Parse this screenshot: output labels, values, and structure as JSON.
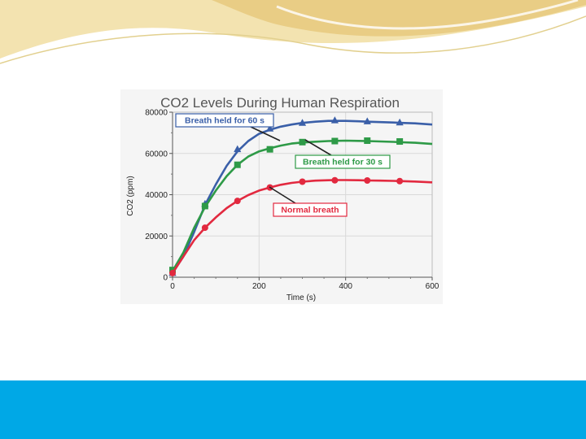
{
  "slide": {
    "accent_color": "#00a8e6",
    "header_wave_colors": [
      "#f3e3b0",
      "#e9cd85",
      "#e2d08f"
    ]
  },
  "chart_data": {
    "type": "line",
    "title": "CO2 Levels During Human Respiration",
    "xlabel": "Time (s)",
    "ylabel": "CO2 (ppm)",
    "xlim": [
      0,
      600
    ],
    "ylim": [
      0,
      80000
    ],
    "x_ticks": [
      0,
      200,
      400,
      600
    ],
    "y_ticks": [
      0,
      20000,
      40000,
      60000,
      80000
    ],
    "grid": true,
    "legend": "inline labels with leader lines",
    "series": [
      {
        "name": "Breath held for 60 s",
        "color": "#3a5fa8",
        "marker": "triangle",
        "line": [
          [
            0,
            2000
          ],
          [
            25,
            10000
          ],
          [
            50,
            22000
          ],
          [
            75,
            35000
          ],
          [
            100,
            45000
          ],
          [
            125,
            54000
          ],
          [
            150,
            61000
          ],
          [
            175,
            66000
          ],
          [
            200,
            69500
          ],
          [
            225,
            71500
          ],
          [
            250,
            73000
          ],
          [
            275,
            74000
          ],
          [
            300,
            74800
          ],
          [
            330,
            75400
          ],
          [
            360,
            75800
          ],
          [
            375,
            75800
          ],
          [
            400,
            75800
          ],
          [
            430,
            75600
          ],
          [
            450,
            75400
          ],
          [
            480,
            75200
          ],
          [
            510,
            75000
          ],
          [
            530,
            74800
          ],
          [
            560,
            74600
          ],
          [
            600,
            74000
          ]
        ],
        "markers": [
          [
            0,
            2000
          ],
          [
            75,
            35500
          ],
          [
            150,
            62000
          ],
          [
            225,
            72000
          ],
          [
            300,
            74800
          ],
          [
            375,
            76000
          ],
          [
            450,
            75500
          ],
          [
            525,
            75000
          ]
        ]
      },
      {
        "name": "Breath held for 30 s",
        "color": "#2e9a47",
        "marker": "square",
        "line": [
          [
            0,
            3000
          ],
          [
            25,
            12000
          ],
          [
            50,
            24000
          ],
          [
            75,
            34000
          ],
          [
            100,
            42000
          ],
          [
            125,
            49000
          ],
          [
            150,
            54500
          ],
          [
            175,
            58500
          ],
          [
            200,
            61000
          ],
          [
            225,
            62500
          ],
          [
            250,
            63800
          ],
          [
            275,
            64800
          ],
          [
            300,
            65300
          ],
          [
            330,
            65700
          ],
          [
            360,
            66000
          ],
          [
            375,
            66100
          ],
          [
            400,
            66200
          ],
          [
            430,
            66100
          ],
          [
            450,
            66000
          ],
          [
            480,
            65800
          ],
          [
            510,
            65600
          ],
          [
            530,
            65400
          ],
          [
            560,
            65200
          ],
          [
            600,
            64600
          ]
        ],
        "markers": [
          [
            0,
            3500
          ],
          [
            75,
            34500
          ],
          [
            150,
            54500
          ],
          [
            225,
            62000
          ],
          [
            300,
            65500
          ],
          [
            375,
            66000
          ],
          [
            450,
            66200
          ],
          [
            525,
            65800
          ]
        ]
      },
      {
        "name": "Normal breath",
        "color": "#e2293f",
        "marker": "circle",
        "line": [
          [
            0,
            2000
          ],
          [
            25,
            10000
          ],
          [
            50,
            18000
          ],
          [
            75,
            24000
          ],
          [
            100,
            29000
          ],
          [
            125,
            33500
          ],
          [
            150,
            37000
          ],
          [
            175,
            39800
          ],
          [
            200,
            42000
          ],
          [
            225,
            43500
          ],
          [
            250,
            44800
          ],
          [
            275,
            45700
          ],
          [
            300,
            46300
          ],
          [
            330,
            46800
          ],
          [
            360,
            47000
          ],
          [
            375,
            47100
          ],
          [
            400,
            47100
          ],
          [
            430,
            47000
          ],
          [
            450,
            46900
          ],
          [
            480,
            46800
          ],
          [
            510,
            46700
          ],
          [
            530,
            46600
          ],
          [
            560,
            46400
          ],
          [
            600,
            46000
          ]
        ],
        "markers": [
          [
            0,
            2000
          ],
          [
            75,
            24000
          ],
          [
            150,
            37000
          ],
          [
            225,
            43500
          ],
          [
            300,
            46300
          ],
          [
            375,
            47000
          ],
          [
            450,
            46900
          ],
          [
            525,
            46600
          ]
        ]
      }
    ]
  }
}
